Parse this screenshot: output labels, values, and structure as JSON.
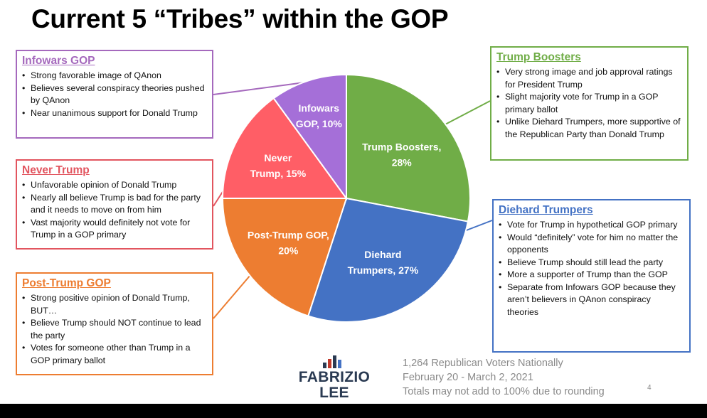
{
  "title": "Current 5 “Tribes” within the GOP",
  "colors": {
    "infowars": "#a569bd",
    "never_trump": "#ff5e66",
    "post_trump": "#ed7d31",
    "diehard": "#4472c4",
    "boosters": "#70ad47"
  },
  "chart_data": {
    "type": "pie",
    "title": "",
    "slices": [
      {
        "name": "Trump Boosters",
        "label_line1": "Trump Boosters,",
        "label_line2": "28%",
        "value": 28,
        "color": "#70ad47"
      },
      {
        "name": "Diehard Trumpers",
        "label_line1": "Diehard",
        "label_line2": "Trumpers, 27%",
        "value": 27,
        "color": "#4472c4"
      },
      {
        "name": "Post-Trump GOP",
        "label_line1": "Post-Trump GOP,",
        "label_line2": "20%",
        "value": 20,
        "color": "#ed7d31"
      },
      {
        "name": "Never Trump",
        "label_line1": "Never",
        "label_line2": "Trump, 15%",
        "value": 15,
        "color": "#ff5e66"
      },
      {
        "name": "Infowars GOP",
        "label_line1": "Infowars",
        "label_line2": "GOP, 10%",
        "value": 10,
        "color": "#a56fd8"
      }
    ]
  },
  "boxes": {
    "infowars": {
      "heading": "Infowars GOP",
      "items": [
        "Strong favorable image of QAnon",
        "Believes several conspiracy theories pushed by QAnon",
        "Near unanimous support for Donald Trump"
      ]
    },
    "never_trump": {
      "heading": "Never Trump",
      "items": [
        "Unfavorable opinion of Donald Trump",
        "Nearly all believe Trump is bad for the party and it needs to move on from him",
        "Vast majority would definitely not vote for Trump in a GOP primary"
      ]
    },
    "post_trump": {
      "heading": "Post-Trump GOP",
      "items": [
        "Strong positive opinion of Donald Trump, BUT…",
        "Believe Trump should NOT continue to lead the party",
        "Votes for someone other than Trump in a GOP primary ballot"
      ]
    },
    "boosters": {
      "heading": "Trump Boosters",
      "items": [
        "Very strong image and job approval ratings for President Trump",
        "Slight majority vote for Trump in a GOP primary ballot",
        "Unlike Diehard Trumpers, more supportive of the Republican Party than Donald Trump"
      ]
    },
    "diehard": {
      "heading": "Diehard Trumpers",
      "items": [
        "Vote for Trump in hypothetical GOP primary",
        "Would “definitely” vote for him no matter the opponents",
        "Believe Trump should still lead the party",
        "More a supporter of Trump than the GOP",
        "Separate from Infowars GOP because they aren’t believers in QAnon conspiracy theories"
      ]
    }
  },
  "footnote": {
    "line1": "1,264 Republican Voters Nationally",
    "line2": "February 20 - March 2, 2021",
    "line3": "Totals may not add to 100% due to rounding"
  },
  "page_number": "4",
  "logo": {
    "line1": "FABRIZIO",
    "line2": "LEE"
  }
}
